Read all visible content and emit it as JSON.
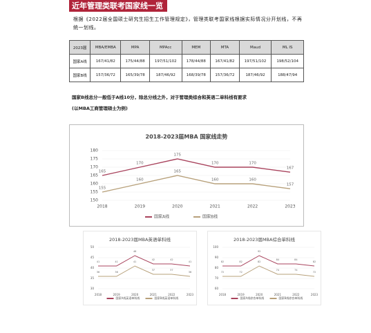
{
  "header": {
    "title": "近年管理类联考国家线一览"
  },
  "intro": "根据《2022届全国硕士研究生招生工作管理规定》，管理类联考国家线根据实际情况分开划线，不再统一划线。",
  "table": {
    "header": [
      "2023届",
      "MBA/EMBA",
      "MPA",
      "MPAcc",
      "MEM",
      "MTA",
      "Maud",
      "ML IS"
    ],
    "rows": [
      [
        "国家A线",
        "167/41/82",
        "175/44/88",
        "197/51/102",
        "178/44/88",
        "167/41/82",
        "197/51/102",
        "198/52/104"
      ],
      [
        "国家B线",
        "157/36/72",
        "165/39/78",
        "187/46/92",
        "168/39/78",
        "157/36/72",
        "187/46/92",
        "188/47/94"
      ]
    ]
  },
  "note": {
    "line1": "国家B线总分一般低于A线10分，除总分线之外，对于管理类综合和英语二单科线有要求",
    "line2": "(以MBA工商管理硕士为例)"
  },
  "chart_data": [
    {
      "type": "line",
      "title": "2018-2023届MBA 国家线走势",
      "categories": [
        "2018",
        "2019",
        "2020",
        "2021",
        "2022",
        "2023"
      ],
      "series": [
        {
          "name": "国家A线",
          "color": "#a8425c",
          "values": [
            165,
            170,
            175,
            170,
            170,
            167
          ]
        },
        {
          "name": "国家B线",
          "color": "#b7a07a",
          "values": [
            155,
            160,
            165,
            160,
            160,
            157
          ]
        }
      ],
      "ylim": [
        150,
        180
      ],
      "yticks": [
        150,
        155,
        160,
        165,
        170,
        175,
        180
      ],
      "grid": true
    },
    {
      "type": "line",
      "title": "2018-2023届MBA英语单科线",
      "categories": [
        "2018",
        "2019",
        "2020",
        "2021",
        "2022",
        "2023"
      ],
      "series": [
        {
          "name": "国家A线英语单科线",
          "color": "#a8425c",
          "values": [
            41,
            41,
            46,
            42,
            42,
            41
          ]
        },
        {
          "name": "国家B线英语单科线",
          "color": "#b7a07a",
          "values": [
            36,
            36,
            41,
            37,
            37,
            36
          ]
        }
      ],
      "ylim": [
        30,
        50
      ],
      "yticks": [
        30,
        35,
        40,
        45,
        50
      ],
      "grid": true
    },
    {
      "type": "line",
      "title": "2018-2023届MBA综合单科线",
      "categories": [
        "2018",
        "2019",
        "2020",
        "2021",
        "2022",
        "2023"
      ],
      "series": [
        {
          "name": "国家A线综合单科线",
          "color": "#a8425c",
          "values": [
            82,
            82,
            92,
            84,
            84,
            82
          ]
        },
        {
          "name": "国家B线综合单科线",
          "color": "#b7a07a",
          "values": [
            72,
            72,
            82,
            74,
            74,
            72
          ]
        }
      ],
      "ylim": [
        60,
        100
      ],
      "yticks": [
        60,
        70,
        80,
        90,
        100
      ],
      "grid": true
    }
  ]
}
